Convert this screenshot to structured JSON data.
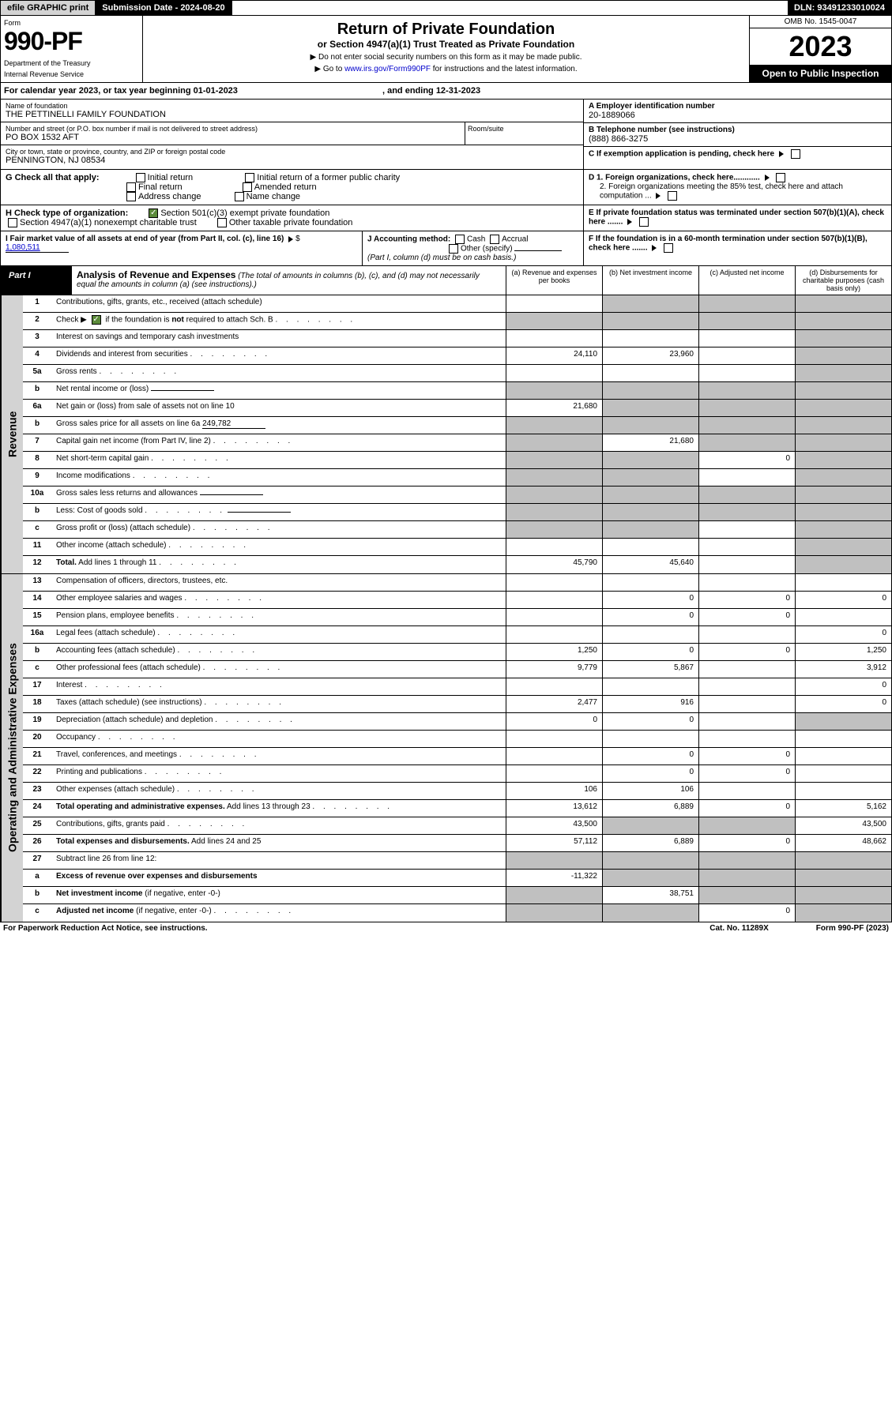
{
  "top": {
    "efile": "efile GRAPHIC print",
    "submission": "Submission Date - 2024-08-20",
    "dln": "DLN: 93491233010024"
  },
  "header": {
    "form_word": "Form",
    "form_no": "990-PF",
    "dept": "Department of the Treasury",
    "irs": "Internal Revenue Service",
    "title": "Return of Private Foundation",
    "subtitle": "or Section 4947(a)(1) Trust Treated as Private Foundation",
    "note1": "▶ Do not enter social security numbers on this form as it may be made public.",
    "note2_pre": "▶ Go to ",
    "note2_link": "www.irs.gov/Form990PF",
    "note2_post": " for instructions and the latest information.",
    "omb": "OMB No. 1545-0047",
    "year": "2023",
    "open": "Open to Public Inspection"
  },
  "cal_year": "For calendar year 2023, or tax year beginning 01-01-2023",
  "cal_year_end": ", and ending 12-31-2023",
  "info": {
    "name_label": "Name of foundation",
    "name": "THE PETTINELLI FAMILY FOUNDATION",
    "addr_label": "Number and street (or P.O. box number if mail is not delivered to street address)",
    "addr": "PO BOX 1532 AFT",
    "room_label": "Room/suite",
    "city_label": "City or town, state or province, country, and ZIP or foreign postal code",
    "city": "PENNINGTON, NJ  08534",
    "a_label": "A Employer identification number",
    "a_val": "20-1889066",
    "b_label": "B Telephone number (see instructions)",
    "b_val": "(888) 866-3275",
    "c_label": "C If exemption application is pending, check here",
    "d1": "D 1. Foreign organizations, check here............",
    "d2": "2. Foreign organizations meeting the 85% test, check here and attach computation ...",
    "e": "E  If private foundation status was terminated under section 507(b)(1)(A), check here .......",
    "f": "F  If the foundation is in a 60-month termination under section 507(b)(1)(B), check here ......."
  },
  "g": {
    "label": "G Check all that apply:",
    "opts": [
      "Initial return",
      "Final return",
      "Address change",
      "Initial return of a former public charity",
      "Amended return",
      "Name change"
    ]
  },
  "h": {
    "label": "H Check type of organization:",
    "o1": "Section 501(c)(3) exempt private foundation",
    "o2": "Section 4947(a)(1) nonexempt charitable trust",
    "o3": "Other taxable private foundation"
  },
  "i": {
    "label": "I Fair market value of all assets at end of year (from Part II, col. (c), line 16)",
    "val": "1,080,511"
  },
  "j": {
    "label": "J Accounting method:",
    "cash": "Cash",
    "accrual": "Accrual",
    "other": "Other (specify)",
    "note": "(Part I, column (d) must be on cash basis.)"
  },
  "part1": {
    "label": "Part I",
    "title": "Analysis of Revenue and Expenses",
    "title_note": "(The total of amounts in columns (b), (c), and (d) may not necessarily equal the amounts in column (a) (see instructions).)",
    "cols": [
      "(a)   Revenue and expenses per books",
      "(b)   Net investment income",
      "(c)   Adjusted net income",
      "(d)  Disbursements for charitable purposes (cash basis only)"
    ]
  },
  "sides": {
    "rev": "Revenue",
    "exp": "Operating and Administrative Expenses"
  },
  "rows_rev": [
    {
      "no": "1",
      "desc": "Contributions, gifts, grants, etc., received (attach schedule)",
      "a": "",
      "b": "g",
      "c": "g",
      "d": "g"
    },
    {
      "no": "2",
      "desc": "Check ▶ [✓] if the foundation is <b>not</b> required to attach Sch. B",
      "dots": true,
      "a": "g",
      "b": "g",
      "c": "g",
      "d": "g",
      "checked": true
    },
    {
      "no": "3",
      "desc": "Interest on savings and temporary cash investments",
      "a": "",
      "b": "",
      "c": "",
      "d": "g"
    },
    {
      "no": "4",
      "desc": "Dividends and interest from securities",
      "dots": true,
      "a": "24,110",
      "b": "23,960",
      "c": "",
      "d": "g"
    },
    {
      "no": "5a",
      "desc": "Gross rents",
      "dots": true,
      "a": "",
      "b": "",
      "c": "",
      "d": "g"
    },
    {
      "no": "b",
      "desc": "Net rental income or (loss)",
      "inline": "",
      "a": "g",
      "b": "g",
      "c": "g",
      "d": "g"
    },
    {
      "no": "6a",
      "desc": "Net gain or (loss) from sale of assets not on line 10",
      "a": "21,680",
      "b": "g",
      "c": "g",
      "d": "g"
    },
    {
      "no": "b",
      "desc": "Gross sales price for all assets on line 6a",
      "inline": "249,782",
      "a": "g",
      "b": "g",
      "c": "g",
      "d": "g"
    },
    {
      "no": "7",
      "desc": "Capital gain net income (from Part IV, line 2)",
      "dots": true,
      "a": "g",
      "b": "21,680",
      "c": "g",
      "d": "g"
    },
    {
      "no": "8",
      "desc": "Net short-term capital gain",
      "dots": true,
      "a": "g",
      "b": "g",
      "c": "0",
      "d": "g"
    },
    {
      "no": "9",
      "desc": "Income modifications",
      "dots": true,
      "a": "g",
      "b": "g",
      "c": "",
      "d": "g"
    },
    {
      "no": "10a",
      "desc": "Gross sales less returns and allowances",
      "inline": "",
      "a": "g",
      "b": "g",
      "c": "g",
      "d": "g"
    },
    {
      "no": "b",
      "desc": "Less: Cost of goods sold",
      "dots": true,
      "inline": "",
      "a": "g",
      "b": "g",
      "c": "g",
      "d": "g"
    },
    {
      "no": "c",
      "desc": "Gross profit or (loss) (attach schedule)",
      "dots": true,
      "a": "g",
      "b": "g",
      "c": "",
      "d": "g"
    },
    {
      "no": "11",
      "desc": "Other income (attach schedule)",
      "dots": true,
      "a": "",
      "b": "",
      "c": "",
      "d": "g"
    },
    {
      "no": "12",
      "desc": "<b>Total.</b> Add lines 1 through 11",
      "dots": true,
      "a": "45,790",
      "b": "45,640",
      "c": "",
      "d": "g"
    }
  ],
  "rows_exp": [
    {
      "no": "13",
      "desc": "Compensation of officers, directors, trustees, etc.",
      "a": "",
      "b": "",
      "c": "",
      "d": ""
    },
    {
      "no": "14",
      "desc": "Other employee salaries and wages",
      "dots": true,
      "a": "",
      "b": "0",
      "c": "0",
      "d": "0"
    },
    {
      "no": "15",
      "desc": "Pension plans, employee benefits",
      "dots": true,
      "a": "",
      "b": "0",
      "c": "0",
      "d": ""
    },
    {
      "no": "16a",
      "desc": "Legal fees (attach schedule)",
      "dots": true,
      "a": "",
      "b": "",
      "c": "",
      "d": "0"
    },
    {
      "no": "b",
      "desc": "Accounting fees (attach schedule)",
      "dots": true,
      "a": "1,250",
      "b": "0",
      "c": "0",
      "d": "1,250"
    },
    {
      "no": "c",
      "desc": "Other professional fees (attach schedule)",
      "dots": true,
      "a": "9,779",
      "b": "5,867",
      "c": "",
      "d": "3,912"
    },
    {
      "no": "17",
      "desc": "Interest",
      "dots": true,
      "a": "",
      "b": "",
      "c": "",
      "d": "0"
    },
    {
      "no": "18",
      "desc": "Taxes (attach schedule) (see instructions)",
      "dots": true,
      "a": "2,477",
      "b": "916",
      "c": "",
      "d": "0"
    },
    {
      "no": "19",
      "desc": "Depreciation (attach schedule) and depletion",
      "dots": true,
      "a": "0",
      "b": "0",
      "c": "",
      "d": "g"
    },
    {
      "no": "20",
      "desc": "Occupancy",
      "dots": true,
      "a": "",
      "b": "",
      "c": "",
      "d": ""
    },
    {
      "no": "21",
      "desc": "Travel, conferences, and meetings",
      "dots": true,
      "a": "",
      "b": "0",
      "c": "0",
      "d": ""
    },
    {
      "no": "22",
      "desc": "Printing and publications",
      "dots": true,
      "a": "",
      "b": "0",
      "c": "0",
      "d": ""
    },
    {
      "no": "23",
      "desc": "Other expenses (attach schedule)",
      "dots": true,
      "a": "106",
      "b": "106",
      "c": "",
      "d": ""
    },
    {
      "no": "24",
      "desc": "<b>Total operating and administrative expenses.</b> Add lines 13 through 23",
      "dots": true,
      "a": "13,612",
      "b": "6,889",
      "c": "0",
      "d": "5,162"
    },
    {
      "no": "25",
      "desc": "Contributions, gifts, grants paid",
      "dots": true,
      "a": "43,500",
      "b": "g",
      "c": "g",
      "d": "43,500"
    },
    {
      "no": "26",
      "desc": "<b>Total expenses and disbursements.</b> Add lines 24 and 25",
      "a": "57,112",
      "b": "6,889",
      "c": "0",
      "d": "48,662"
    },
    {
      "no": "27",
      "desc": "Subtract line 26 from line 12:",
      "a": "g",
      "b": "g",
      "c": "g",
      "d": "g"
    },
    {
      "no": "a",
      "desc": "<b>Excess of revenue over expenses and disbursements</b>",
      "a": "-11,322",
      "b": "g",
      "c": "g",
      "d": "g"
    },
    {
      "no": "b",
      "desc": "<b>Net investment income</b> (if negative, enter -0-)",
      "a": "g",
      "b": "38,751",
      "c": "g",
      "d": "g"
    },
    {
      "no": "c",
      "desc": "<b>Adjusted net income</b> (if negative, enter -0-)",
      "dots": true,
      "a": "g",
      "b": "g",
      "c": "0",
      "d": "g"
    }
  ],
  "footer": {
    "left": "For Paperwork Reduction Act Notice, see instructions.",
    "mid": "Cat. No. 11289X",
    "right": "Form 990-PF (2023)"
  }
}
